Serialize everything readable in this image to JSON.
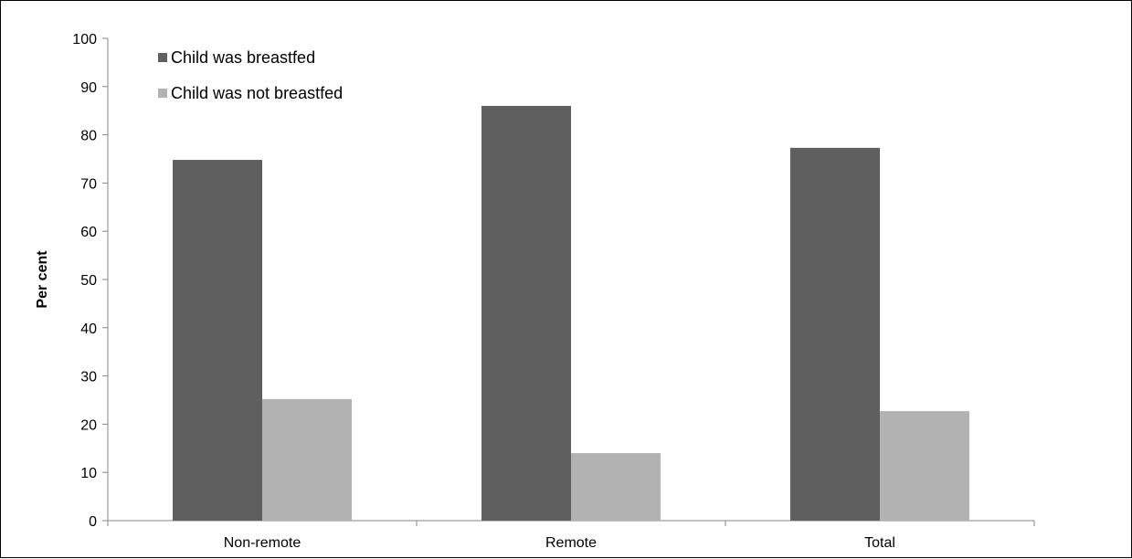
{
  "chart_data": {
    "type": "bar",
    "title": "",
    "xlabel": "",
    "ylabel": "Per cent",
    "ylim": [
      0,
      100
    ],
    "ytick_step": 10,
    "yticks": [
      "0",
      "10",
      "20",
      "30",
      "40",
      "50",
      "60",
      "70",
      "80",
      "90",
      "100"
    ],
    "categories": [
      "Non-remote",
      "Remote",
      "Total"
    ],
    "series": [
      {
        "name": "Child was breastfed",
        "values": [
          74.8,
          86.0,
          77.3
        ],
        "color": "#5f5f5f"
      },
      {
        "name": "Child was not breastfed",
        "values": [
          25.2,
          14.0,
          22.7
        ],
        "color": "#b2b2b2"
      }
    ],
    "legend_position": "top-left",
    "grid": false
  }
}
